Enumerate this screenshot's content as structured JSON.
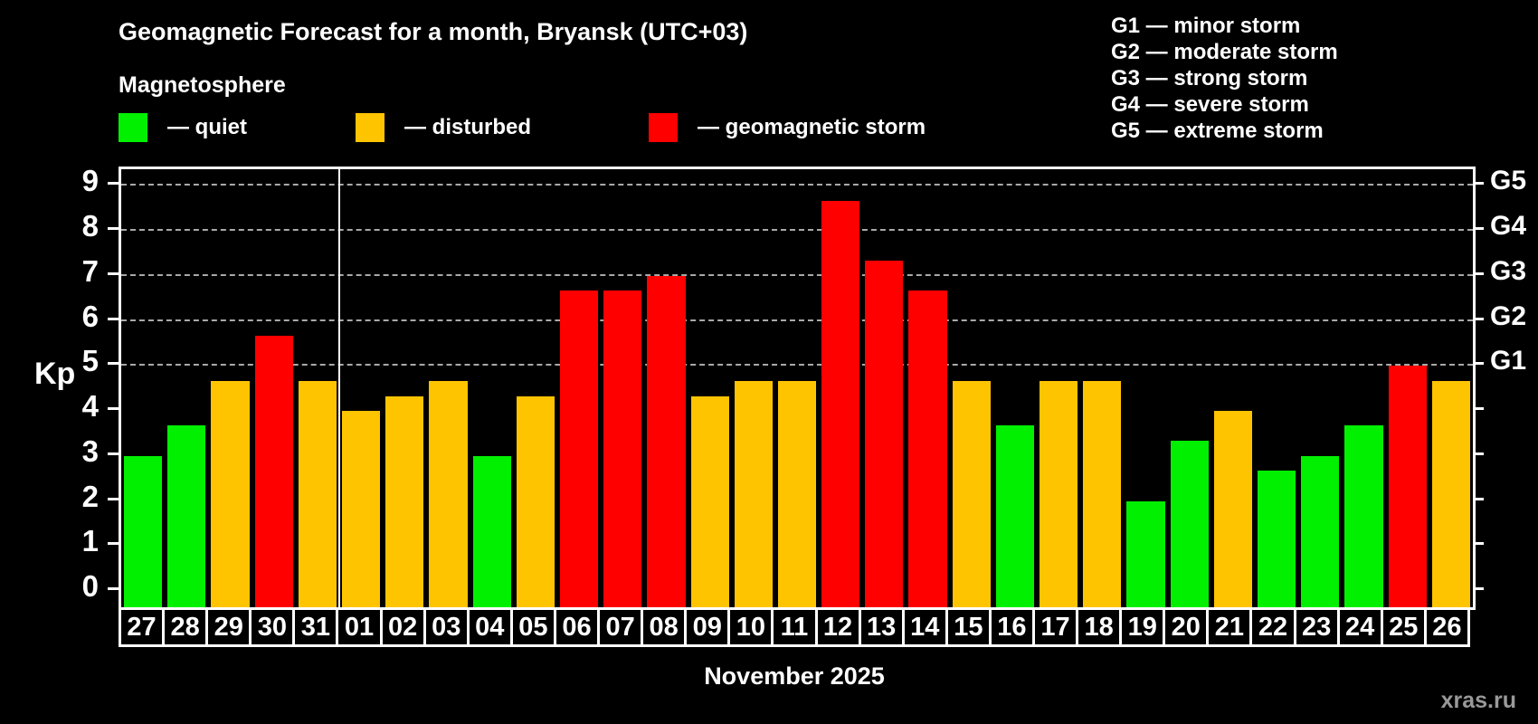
{
  "title": "Geomagnetic Forecast for a month, Bryansk (UTC+03)",
  "subtitle": "Magnetosphere",
  "legend": {
    "quiet": {
      "label": "— quiet",
      "color": "#00f000"
    },
    "disturbed": {
      "label": "— disturbed",
      "color": "#ffc400"
    },
    "storm": {
      "label": "— geomagnetic storm",
      "color": "#ff0000"
    }
  },
  "g_scale": [
    {
      "code": "G1",
      "label": "G1 — minor storm",
      "kp": 5
    },
    {
      "code": "G2",
      "label": "G2 — moderate storm",
      "kp": 6
    },
    {
      "code": "G3",
      "label": "G3 — strong storm",
      "kp": 7
    },
    {
      "code": "G4",
      "label": "G4 — severe storm",
      "kp": 8
    },
    {
      "code": "G5",
      "label": "G5 — extreme storm",
      "kp": 9
    }
  ],
  "axis": {
    "ylabel": "Kp",
    "left_ticks": [
      0,
      1,
      2,
      3,
      4,
      5,
      6,
      7,
      8,
      9
    ],
    "right_ticks": [
      0,
      1,
      2,
      3,
      4,
      5,
      6,
      7,
      8,
      9
    ]
  },
  "x_axis_title": "November 2025",
  "watermark": "xras.ru",
  "chart_data": {
    "type": "bar",
    "title": "Geomagnetic Forecast for a month, Bryansk (UTC+03)",
    "xlabel": "November 2025",
    "ylabel": "Kp",
    "ylim": [
      0,
      9
    ],
    "gridlines_at": [
      5,
      6,
      7,
      8,
      9
    ],
    "grid_style": "dashed horizontal, G-storm levels only",
    "legend_position": "top",
    "month_divider_after_index": 4,
    "categories": [
      "27",
      "28",
      "29",
      "30",
      "31",
      "01",
      "02",
      "03",
      "04",
      "05",
      "06",
      "07",
      "08",
      "09",
      "10",
      "11",
      "12",
      "13",
      "14",
      "15",
      "16",
      "17",
      "18",
      "19",
      "20",
      "21",
      "22",
      "23",
      "24",
      "25",
      "26"
    ],
    "values": [
      3,
      3.67,
      4.67,
      5.67,
      4.67,
      4,
      4.33,
      4.67,
      3,
      4.33,
      6.67,
      6.67,
      7,
      4.33,
      4.67,
      4.67,
      8.67,
      7.33,
      6.67,
      4.67,
      3.67,
      4.67,
      4.67,
      2,
      3.33,
      4,
      2.67,
      3,
      3.67,
      5,
      4.67
    ],
    "statuses": [
      "quiet",
      "quiet",
      "disturbed",
      "storm",
      "disturbed",
      "disturbed",
      "disturbed",
      "disturbed",
      "quiet",
      "disturbed",
      "storm",
      "storm",
      "storm",
      "disturbed",
      "disturbed",
      "disturbed",
      "storm",
      "storm",
      "storm",
      "disturbed",
      "quiet",
      "disturbed",
      "disturbed",
      "quiet",
      "quiet",
      "disturbed",
      "quiet",
      "quiet",
      "quiet",
      "storm",
      "disturbed"
    ]
  }
}
